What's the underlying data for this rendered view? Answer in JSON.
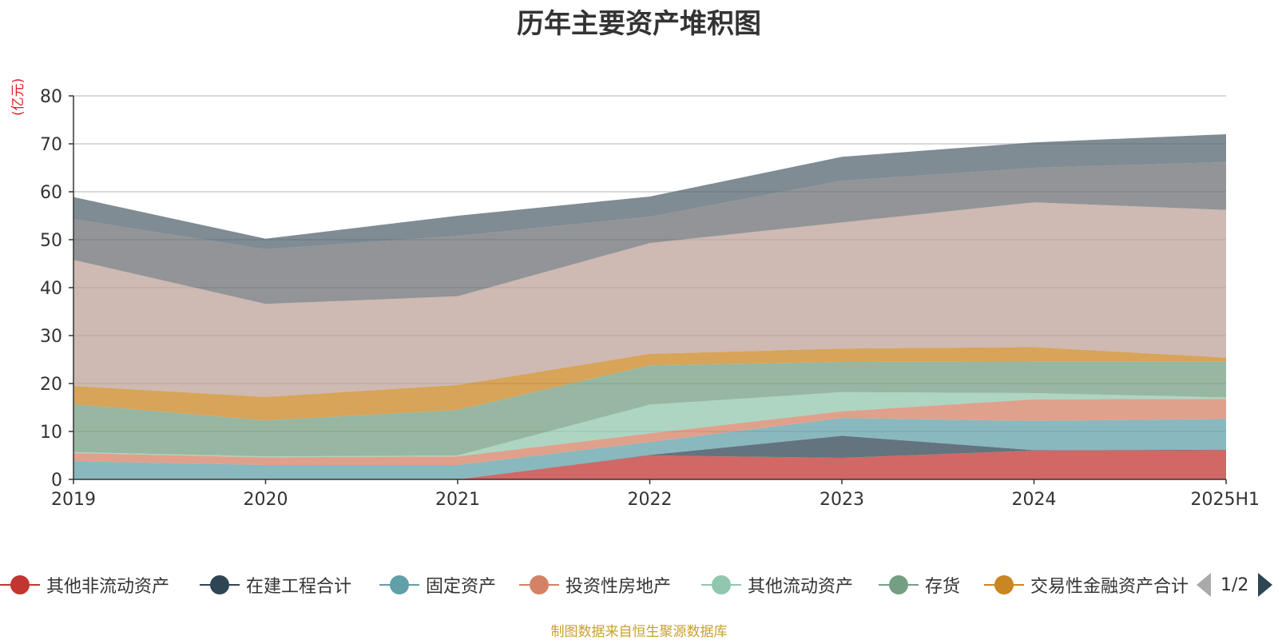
{
  "chart_data": {
    "type": "area",
    "stacked": true,
    "title": "历年主要资产堆积图",
    "ylabel": "(亿元)",
    "xlabel": "",
    "categories": [
      "2019",
      "2020",
      "2021",
      "2022",
      "2023",
      "2024",
      "2025H1"
    ],
    "ylim": [
      0,
      80
    ],
    "yticks": [
      0,
      10,
      20,
      30,
      40,
      50,
      60,
      70,
      80
    ],
    "grid": true,
    "legend_position": "bottom",
    "series": [
      {
        "name": "其他非流动资产",
        "color": "#c23531",
        "values": [
          0,
          0,
          0,
          5.0,
          4.5,
          6.0,
          6.1
        ]
      },
      {
        "name": "在建工程合计",
        "color": "#2f4554",
        "values": [
          0,
          0,
          0,
          0.1,
          4.6,
          0.1,
          0.1
        ]
      },
      {
        "name": "固定资产",
        "color": "#61a0a8",
        "values": [
          3.8,
          3.0,
          3.0,
          2.7,
          3.7,
          6.1,
          6.4
        ]
      },
      {
        "name": "投资性房地产",
        "color": "#d48265",
        "values": [
          1.7,
          1.6,
          1.8,
          1.8,
          1.4,
          4.5,
          4.2
        ]
      },
      {
        "name": "其他流动资产",
        "color": "#91c7ae",
        "values": [
          0.2,
          0.2,
          0.2,
          6.0,
          4.0,
          1.3,
          0.3
        ]
      },
      {
        "name": "存货",
        "color": "#749f83",
        "values": [
          10.0,
          7.5,
          9.5,
          8.2,
          6.3,
          6.6,
          7.5
        ]
      },
      {
        "name": "交易性金融资产合计",
        "color": "#ca8622",
        "values": [
          3.8,
          4.9,
          5.2,
          2.4,
          2.8,
          3.0,
          0.8
        ]
      },
      {
        "name": "",
        "color": "#bda29a",
        "values": [
          26.3,
          19.4,
          18.5,
          23.1,
          26.3,
          30.2,
          30.8
        ]
      },
      {
        "name": "",
        "color": "#6e7074",
        "values": [
          8.5,
          11.4,
          12.6,
          5.5,
          8.7,
          7.2,
          10.0
        ]
      },
      {
        "name": "",
        "color": "#546570",
        "values": [
          4.6,
          2.2,
          4.2,
          4.2,
          5.0,
          5.3,
          5.8
        ]
      }
    ]
  },
  "legend": {
    "items": [
      {
        "label": "其他非流动资产",
        "color": "#c23531"
      },
      {
        "label": "在建工程合计",
        "color": "#2f4554"
      },
      {
        "label": "固定资产",
        "color": "#61a0a8"
      },
      {
        "label": "投资性房地产",
        "color": "#d48265"
      },
      {
        "label": "其他流动资产",
        "color": "#91c7ae"
      },
      {
        "label": "存货",
        "color": "#749f83"
      },
      {
        "label": "交易性金融资产合计",
        "color": "#ca8622"
      }
    ],
    "pager": "1/2"
  },
  "footer": {
    "source": "制图数据来自恒生聚源数据库"
  }
}
